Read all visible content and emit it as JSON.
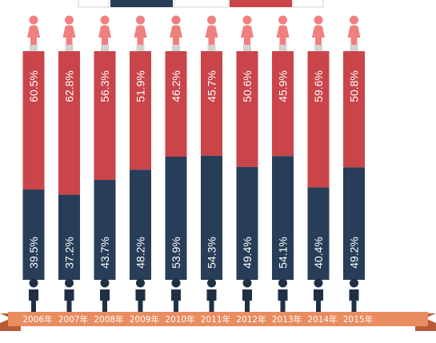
{
  "chart_data": {
    "type": "bar",
    "stacked": true,
    "orientation": "vertical",
    "ylim": [
      0,
      100
    ],
    "grid": false,
    "legend": "top",
    "categories": [
      "2006年",
      "2007年",
      "2008年",
      "2009年",
      "2010年",
      "2011年",
      "2012年",
      "2013年",
      "2014年",
      "2015年"
    ],
    "series": [
      {
        "key": "female",
        "color": "#c9454a",
        "icon": "female-person-icon",
        "values": [
          60.5,
          62.8,
          56.3,
          51.9,
          46.2,
          45.7,
          50.6,
          45.9,
          59.6,
          50.8
        ],
        "labels": [
          "60.5%",
          "62.8%",
          "56.3%",
          "51.9%",
          "46.2%",
          "45.7%",
          "50.6%",
          "45.9%",
          "59.6%",
          "50.8%"
        ]
      },
      {
        "key": "male",
        "color": "#283d58",
        "icon": "male-person-icon",
        "values": [
          39.5,
          37.2,
          43.7,
          48.2,
          53.9,
          54.3,
          49.4,
          54.1,
          40.4,
          49.2
        ],
        "labels": [
          "39.5%",
          "37.2%",
          "43.7%",
          "48.2%",
          "53.9%",
          "54.3%",
          "49.4%",
          "54.1%",
          "40.4%",
          "49.2%"
        ]
      }
    ]
  },
  "colors": {
    "female": "#c9454a",
    "female_icon": "#f08080",
    "male": "#283d58",
    "male_icon": "#1f2f44",
    "ribbon": "#e98c60",
    "ribbon_dark": "#b95a36",
    "connector": "#d2d2d2"
  }
}
